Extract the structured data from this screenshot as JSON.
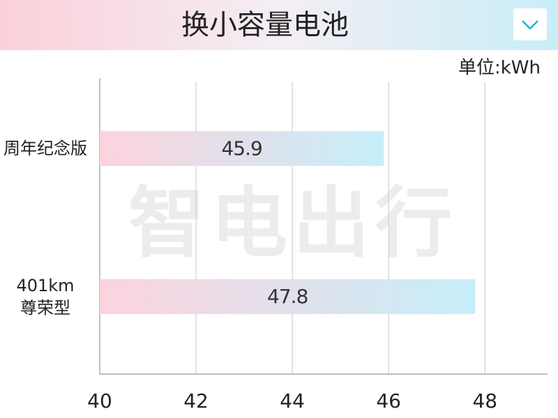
{
  "chart_data": {
    "type": "hbar",
    "title": "换小容量电池",
    "unit_label": "单位:kWh",
    "watermark": "智电出行",
    "categories": [
      "周年纪念版",
      "401km\n尊荣型"
    ],
    "values": [
      45.9,
      47.8
    ],
    "colors": [
      "#fcd3dd",
      "#c6eef9"
    ],
    "xlim": [
      40,
      49.3
    ],
    "xticks": [
      40,
      42,
      44,
      46,
      48
    ],
    "grid": true
  }
}
